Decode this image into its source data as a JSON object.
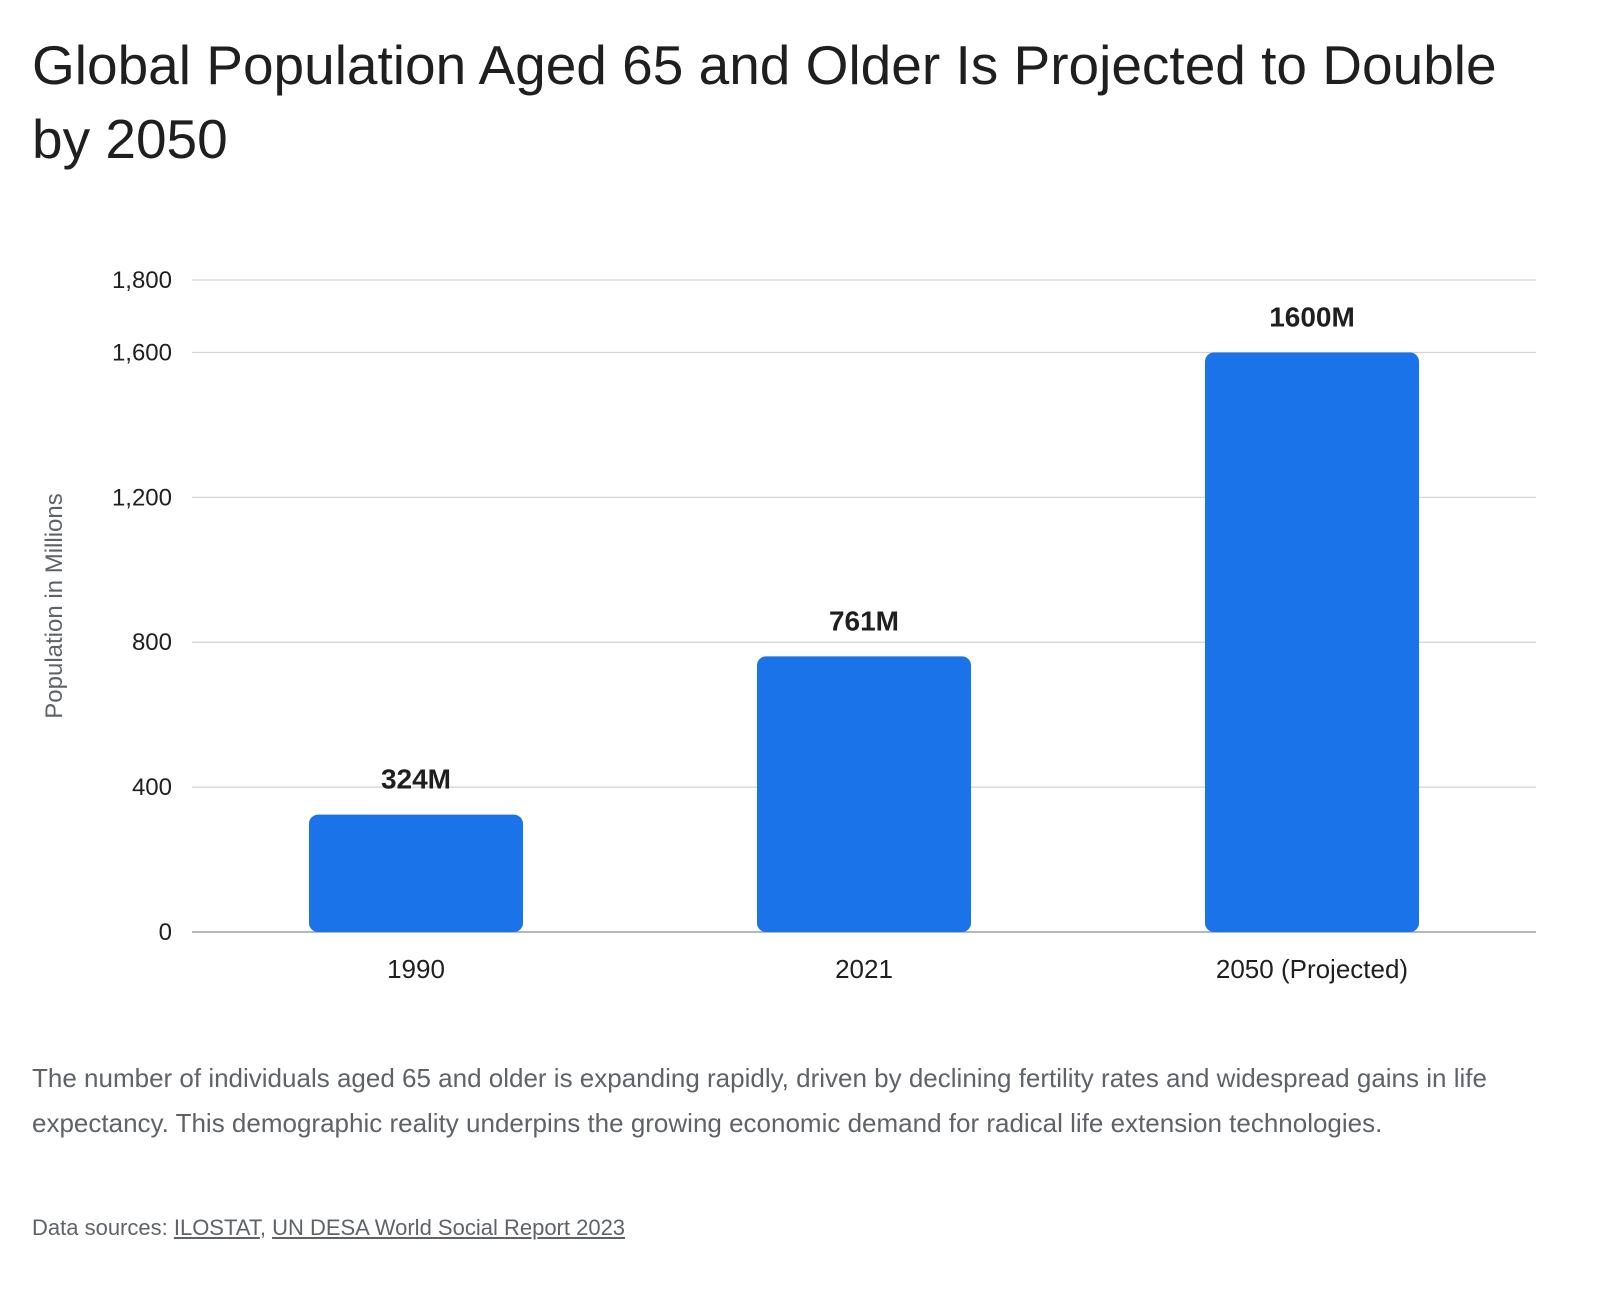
{
  "title": "Global Population Aged 65 and Older Is Projected to Double by 2050",
  "chart_data": {
    "type": "bar",
    "categories": [
      "1990",
      "2021",
      "2050 (Projected)"
    ],
    "values": [
      324,
      761,
      1600
    ],
    "data_labels": [
      "324M",
      "761M",
      "1600M"
    ],
    "xlabel": "",
    "ylabel": "Population in Millions",
    "ylim": [
      0,
      1800
    ],
    "yticks": [
      0,
      400,
      800,
      1200,
      1600,
      1800
    ],
    "ytick_labels": [
      "0",
      "400",
      "800",
      "1,200",
      "1,600",
      "1,800"
    ],
    "grid": true,
    "legend": "none",
    "bar_color": "#1a73e8"
  },
  "caption": "The number of individuals aged 65 and older is expanding rapidly, driven by declining fertility rates and widespread gains in life expectancy. This demographic reality underpins the growing economic demand for radical life extension technologies.",
  "sources": {
    "prefix": "Data sources: ",
    "separator": ", ",
    "links": [
      "ILOSTAT",
      "UN DESA World Social Report 2023"
    ]
  }
}
